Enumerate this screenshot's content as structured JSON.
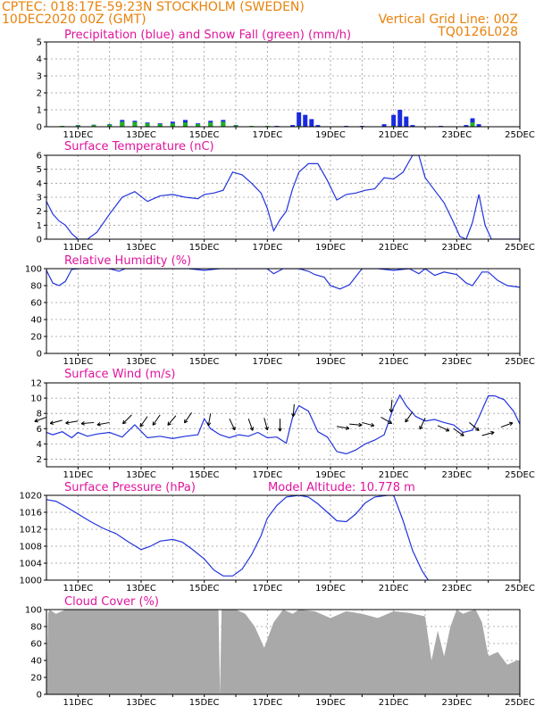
{
  "header": {
    "line1_left": "CPTEC:   018:17E-59:23N   STOCKHOLM (SWEDEN)",
    "line2_left": "10DEC2020 00Z (GMT)",
    "line2_right": "Vertical Grid Line: 00Z",
    "line3_right": "TQ0126L028"
  },
  "colors": {
    "header": "#e8820c",
    "title": "#e0149c",
    "line": "#2233dd",
    "precip": "#1a2ae0",
    "snow": "#22b022",
    "cloud": "#a9a9a9"
  },
  "date_labels": [
    "11DEC",
    "13DEC",
    "15DEC",
    "17DEC",
    "19DEC",
    "21DEC",
    "23DEC",
    "25DEC"
  ],
  "chart_data": [
    {
      "id": "precip",
      "type": "bar",
      "title": "Precipitation (blue) and Snow Fall (green) (mm/h)",
      "ylim": [
        0,
        5
      ],
      "yticks": [
        0,
        1,
        2,
        3,
        4,
        5
      ],
      "series": [
        {
          "name": "Precipitation",
          "x": [
            10.5,
            11.0,
            11.5,
            12.0,
            12.4,
            12.8,
            13.2,
            13.6,
            14.0,
            14.4,
            14.8,
            15.2,
            15.6,
            16.0,
            17.3,
            17.8,
            18.0,
            18.2,
            18.4,
            18.6,
            19.5,
            20.0,
            20.7,
            21.0,
            21.2,
            21.4,
            21.6,
            22.5,
            23.3,
            23.5,
            23.7
          ],
          "values": [
            0.05,
            0.1,
            0.12,
            0.15,
            0.4,
            0.35,
            0.25,
            0.2,
            0.3,
            0.4,
            0.2,
            0.35,
            0.4,
            0.1,
            0.05,
            0.1,
            0.85,
            0.7,
            0.45,
            0.1,
            0.05,
            0.05,
            0.15,
            0.7,
            1.0,
            0.6,
            0.1,
            0.05,
            0.1,
            0.5,
            0.15
          ]
        },
        {
          "name": "Snow Fall",
          "x": [
            10.5,
            11.0,
            11.5,
            12.0,
            12.4,
            12.8,
            13.2,
            13.6,
            14.0,
            14.4,
            14.8,
            15.2,
            15.6,
            16.0,
            16.5,
            17.0,
            18.0,
            21.0,
            23.5
          ],
          "values": [
            0.05,
            0.08,
            0.1,
            0.12,
            0.3,
            0.28,
            0.2,
            0.15,
            0.2,
            0.25,
            0.15,
            0.25,
            0.3,
            0.08,
            0.05,
            0.05,
            0.05,
            0.05,
            0.25
          ]
        }
      ]
    },
    {
      "id": "temp",
      "type": "line",
      "title": "Surface Temperature (nC)",
      "ylim": [
        0,
        6
      ],
      "yticks": [
        0,
        1,
        2,
        3,
        4,
        5,
        6
      ],
      "x": [
        10.0,
        10.2,
        10.4,
        10.6,
        10.8,
        11.0,
        11.3,
        11.6,
        12.0,
        12.4,
        12.8,
        13.2,
        13.6,
        14.0,
        14.4,
        14.8,
        15.0,
        15.3,
        15.6,
        15.9,
        16.2,
        16.5,
        16.8,
        17.0,
        17.2,
        17.4,
        17.6,
        17.8,
        18.0,
        18.3,
        18.6,
        18.9,
        19.2,
        19.5,
        19.8,
        20.1,
        20.4,
        20.7,
        21.0,
        21.3,
        21.6,
        21.8,
        22.0,
        22.3,
        22.6,
        22.9,
        23.1,
        23.3,
        23.5,
        23.7,
        23.9,
        24.1,
        24.3,
        24.6,
        25.0
      ],
      "values": [
        2.7,
        1.8,
        1.3,
        1.0,
        0.4,
        0.0,
        0.0,
        0.5,
        1.8,
        3.0,
        3.4,
        2.7,
        3.1,
        3.2,
        3.0,
        2.9,
        3.2,
        3.3,
        3.5,
        4.8,
        4.6,
        4.0,
        3.3,
        2.2,
        0.6,
        1.4,
        2.0,
        3.6,
        4.8,
        5.4,
        5.4,
        4.2,
        2.8,
        3.2,
        3.3,
        3.5,
        3.6,
        4.4,
        4.3,
        4.8,
        6.0,
        6.0,
        4.4,
        3.5,
        2.6,
        1.2,
        0.2,
        0.0,
        1.2,
        3.2,
        1.0,
        0.0,
        0.0,
        0.0,
        0.0
      ]
    },
    {
      "id": "rh",
      "type": "line",
      "title": "Relative Humidity (%)",
      "ylim": [
        0,
        100
      ],
      "yticks": [
        0,
        20,
        40,
        60,
        80,
        100
      ],
      "x": [
        10.0,
        10.2,
        10.4,
        10.6,
        10.8,
        11.0,
        11.5,
        12.0,
        12.3,
        12.5,
        13.0,
        13.5,
        14.0,
        14.5,
        15.0,
        15.5,
        16.0,
        16.5,
        17.0,
        17.2,
        17.5,
        18.0,
        18.3,
        18.5,
        18.8,
        19.0,
        19.3,
        19.6,
        20.0,
        20.5,
        21.0,
        21.5,
        21.8,
        22.0,
        22.3,
        22.6,
        23.0,
        23.3,
        23.5,
        23.8,
        24.0,
        24.3,
        24.6,
        25.0
      ],
      "values": [
        98,
        83,
        80,
        85,
        99,
        100,
        100,
        100,
        97,
        100,
        100,
        100,
        100,
        100,
        98,
        100,
        100,
        100,
        100,
        94,
        100,
        100,
        97,
        93,
        90,
        80,
        76,
        81,
        100,
        100,
        98,
        100,
        94,
        100,
        92,
        96,
        93,
        83,
        80,
        96,
        96,
        86,
        80,
        78
      ]
    },
    {
      "id": "wind",
      "type": "line",
      "title": "Surface Wind (m/s)",
      "ylim": [
        1,
        12
      ],
      "yticks": [
        2,
        4,
        6,
        8,
        10,
        12
      ],
      "x": [
        10.0,
        10.2,
        10.5,
        10.8,
        11.0,
        11.3,
        11.6,
        12.0,
        12.4,
        12.8,
        13.2,
        13.6,
        14.0,
        14.4,
        14.8,
        15.0,
        15.2,
        15.5,
        15.8,
        16.1,
        16.4,
        16.7,
        17.0,
        17.3,
        17.6,
        17.8,
        18.0,
        18.3,
        18.6,
        18.9,
        19.2,
        19.5,
        19.8,
        20.1,
        20.4,
        20.7,
        21.0,
        21.2,
        21.4,
        21.7,
        22.0,
        22.3,
        22.6,
        22.9,
        23.2,
        23.5,
        23.7,
        24.0,
        24.2,
        24.5,
        24.8,
        25.0
      ],
      "values": [
        5.5,
        5.2,
        5.6,
        4.8,
        5.5,
        5.0,
        5.3,
        5.5,
        4.9,
        6.5,
        4.8,
        5.0,
        4.7,
        5.0,
        5.2,
        7.3,
        6.0,
        5.2,
        4.8,
        5.2,
        5.0,
        5.5,
        4.8,
        4.9,
        4.1,
        7.5,
        9.0,
        8.3,
        5.6,
        4.9,
        3.0,
        2.7,
        3.2,
        4.0,
        4.5,
        5.2,
        8.8,
        10.4,
        9.0,
        7.6,
        7.0,
        7.2,
        6.8,
        6.5,
        5.5,
        5.8,
        7.5,
        10.3,
        10.3,
        9.8,
        8.3,
        6.6
      ]
    },
    {
      "id": "pressure",
      "type": "line",
      "title": "Surface Pressure (hPa)",
      "annotation": "Model Altitude: 10.778  m",
      "ylim": [
        1000,
        1020
      ],
      "yticks": [
        1000,
        1004,
        1008,
        1012,
        1016,
        1020
      ],
      "x": [
        10.0,
        10.3,
        10.6,
        11.0,
        11.4,
        11.8,
        12.2,
        12.6,
        13.0,
        13.3,
        13.6,
        14.0,
        14.3,
        14.6,
        15.0,
        15.3,
        15.6,
        15.9,
        16.2,
        16.5,
        16.8,
        17.0,
        17.3,
        17.6,
        18.0,
        18.3,
        18.6,
        18.9,
        19.2,
        19.5,
        19.8,
        20.1,
        20.4,
        20.8,
        21.0,
        21.3,
        21.6,
        21.9,
        22.1
      ],
      "values": [
        1019.0,
        1018.6,
        1017.4,
        1015.6,
        1013.8,
        1012.2,
        1011.0,
        1009.0,
        1007.2,
        1008.0,
        1009.2,
        1009.6,
        1009.0,
        1007.4,
        1005.0,
        1002.4,
        1001.0,
        1001.0,
        1002.6,
        1006.0,
        1010.5,
        1014.6,
        1017.6,
        1019.6,
        1020.0,
        1019.6,
        1018.0,
        1016.0,
        1014.0,
        1013.8,
        1015.6,
        1018.2,
        1019.6,
        1020.0,
        1020.0,
        1014.0,
        1007.0,
        1002.2,
        1000.0
      ]
    },
    {
      "id": "cloud",
      "type": "area",
      "title": "Cloud Cover (%)",
      "ylim": [
        0,
        100
      ],
      "yticks": [
        0,
        20,
        40,
        60,
        80,
        100
      ],
      "x": [
        10.0,
        10.05,
        10.1,
        10.3,
        10.6,
        11.0,
        12.0,
        13.0,
        14.0,
        15.0,
        15.45,
        15.5,
        15.55,
        16.0,
        16.3,
        16.6,
        16.9,
        17.2,
        17.5,
        17.8,
        18.0,
        18.5,
        19.0,
        19.5,
        20.0,
        20.5,
        21.0,
        21.5,
        22.0,
        22.2,
        22.4,
        22.6,
        22.8,
        23.0,
        23.2,
        23.4,
        23.6,
        23.8,
        24.0,
        24.3,
        24.6,
        24.9,
        25.0
      ],
      "values": [
        0,
        95,
        100,
        95,
        100,
        100,
        100,
        100,
        100,
        100,
        100,
        0,
        100,
        100,
        95,
        80,
        55,
        85,
        100,
        95,
        100,
        98,
        90,
        98,
        95,
        90,
        98,
        96,
        92,
        40,
        75,
        45,
        80,
        100,
        95,
        98,
        100,
        85,
        45,
        50,
        35,
        40,
        40
      ]
    }
  ],
  "wind_barbs": [
    {
      "day": 10.0,
      "speed": 7.5,
      "angle": 200
    },
    {
      "day": 10.5,
      "speed": 7.1,
      "angle": 195
    },
    {
      "day": 11.0,
      "speed": 7.0,
      "angle": 190
    },
    {
      "day": 11.5,
      "speed": 6.8,
      "angle": 185
    },
    {
      "day": 12.0,
      "speed": 6.8,
      "angle": 190
    },
    {
      "day": 12.7,
      "speed": 7.8,
      "angle": 225
    },
    {
      "day": 13.2,
      "speed": 7.6,
      "angle": 235
    },
    {
      "day": 13.6,
      "speed": 7.8,
      "angle": 235
    },
    {
      "day": 14.1,
      "speed": 7.7,
      "angle": 230
    },
    {
      "day": 14.6,
      "speed": 8.1,
      "angle": 235
    },
    {
      "day": 15.2,
      "speed": 8.0,
      "angle": 260
    },
    {
      "day": 15.8,
      "speed": 7.3,
      "angle": 295
    },
    {
      "day": 16.4,
      "speed": 7.3,
      "angle": 290
    },
    {
      "day": 16.9,
      "speed": 7.4,
      "angle": 285
    },
    {
      "day": 17.4,
      "speed": 7.3,
      "angle": 270
    },
    {
      "day": 17.85,
      "speed": 9.2,
      "angle": 265
    },
    {
      "day": 19.2,
      "speed": 6.3,
      "angle": 350
    },
    {
      "day": 19.6,
      "speed": 6.6,
      "angle": 355
    },
    {
      "day": 20.0,
      "speed": 6.8,
      "angle": 345
    },
    {
      "day": 20.6,
      "speed": 7.5,
      "angle": 330
    },
    {
      "day": 20.95,
      "speed": 9.8,
      "angle": 265
    },
    {
      "day": 21.6,
      "speed": 8.2,
      "angle": 235
    },
    {
      "day": 22.0,
      "speed": 7.4,
      "angle": 245
    },
    {
      "day": 22.4,
      "speed": 6.4,
      "angle": 335
    },
    {
      "day": 22.9,
      "speed": 6.0,
      "angle": 325
    },
    {
      "day": 23.4,
      "speed": 6.8,
      "angle": 320
    },
    {
      "day": 23.8,
      "speed": 5.1,
      "angle": 15
    },
    {
      "day": 24.4,
      "speed": 6.2,
      "angle": 20
    }
  ]
}
